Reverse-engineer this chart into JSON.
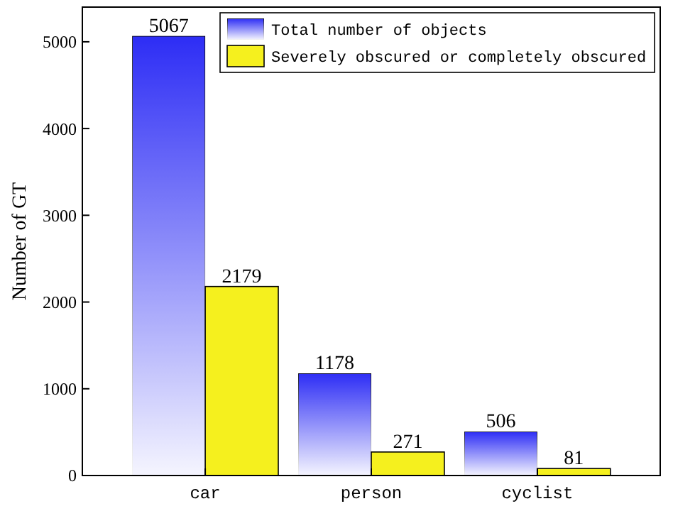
{
  "chart_data": {
    "type": "bar",
    "ylabel": "Number of GT",
    "categories": [
      "car",
      "person",
      "cyclist"
    ],
    "series": [
      {
        "name": "Total number of objects",
        "color": "#2d2df5",
        "values": [
          5067,
          1178,
          506
        ]
      },
      {
        "name": "Severely obscured or completely obscured",
        "color": "#f5f01e",
        "values": [
          2179,
          271,
          81
        ]
      }
    ],
    "ylim": [
      0,
      5400
    ],
    "yticks": [
      0,
      1000,
      2000,
      3000,
      4000,
      5000
    ],
    "data_labels": true,
    "legend": "top right",
    "grid": false
  }
}
